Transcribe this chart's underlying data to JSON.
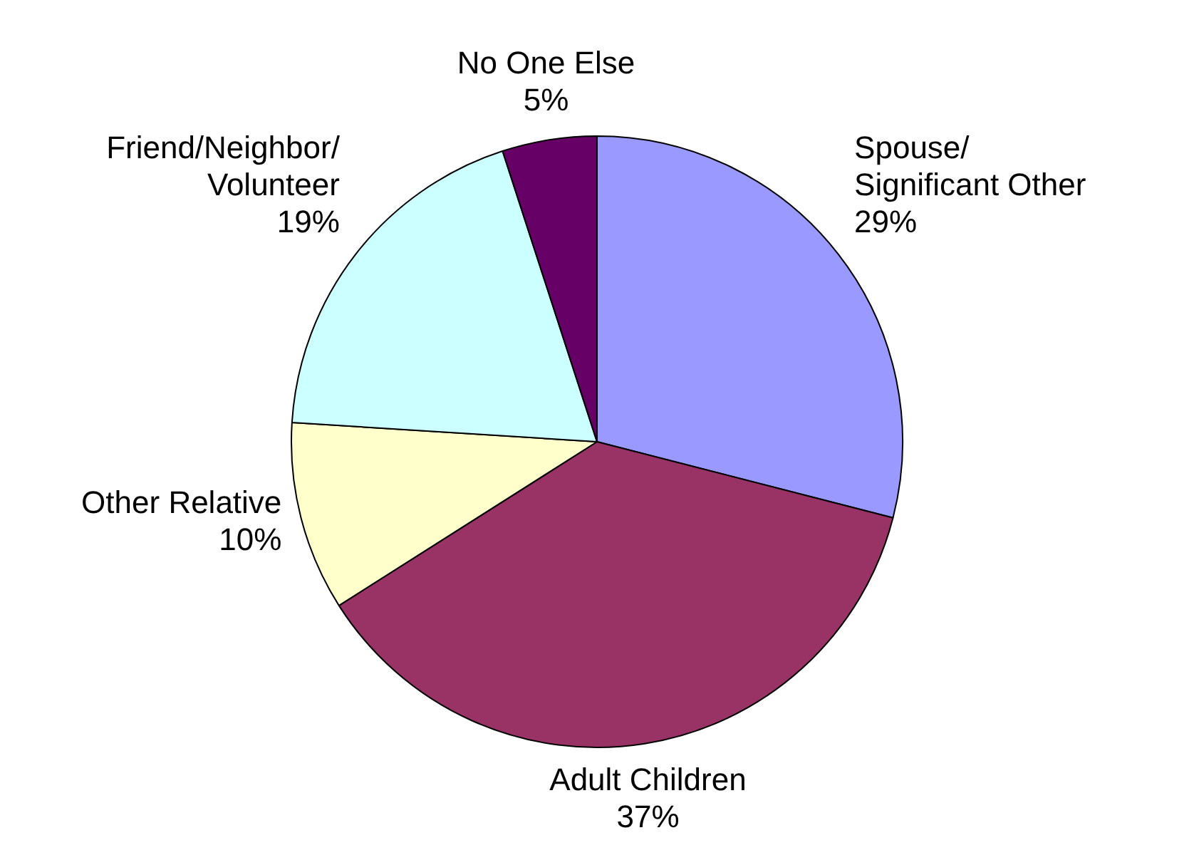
{
  "chart_data": {
    "type": "pie",
    "categories": [
      "Spouse/\nSignificant Other",
      "Adult Children",
      "Other Relative",
      "Friend/Neighbor/\nVolunteer",
      "No One Else"
    ],
    "values": [
      29,
      37,
      10,
      19,
      5
    ],
    "colors": [
      "#9999ff",
      "#993366",
      "#ffffcc",
      "#ccffff",
      "#660066"
    ],
    "value_labels": [
      "29%",
      "37%",
      "10%",
      "19%",
      "5%"
    ],
    "legend": false
  }
}
